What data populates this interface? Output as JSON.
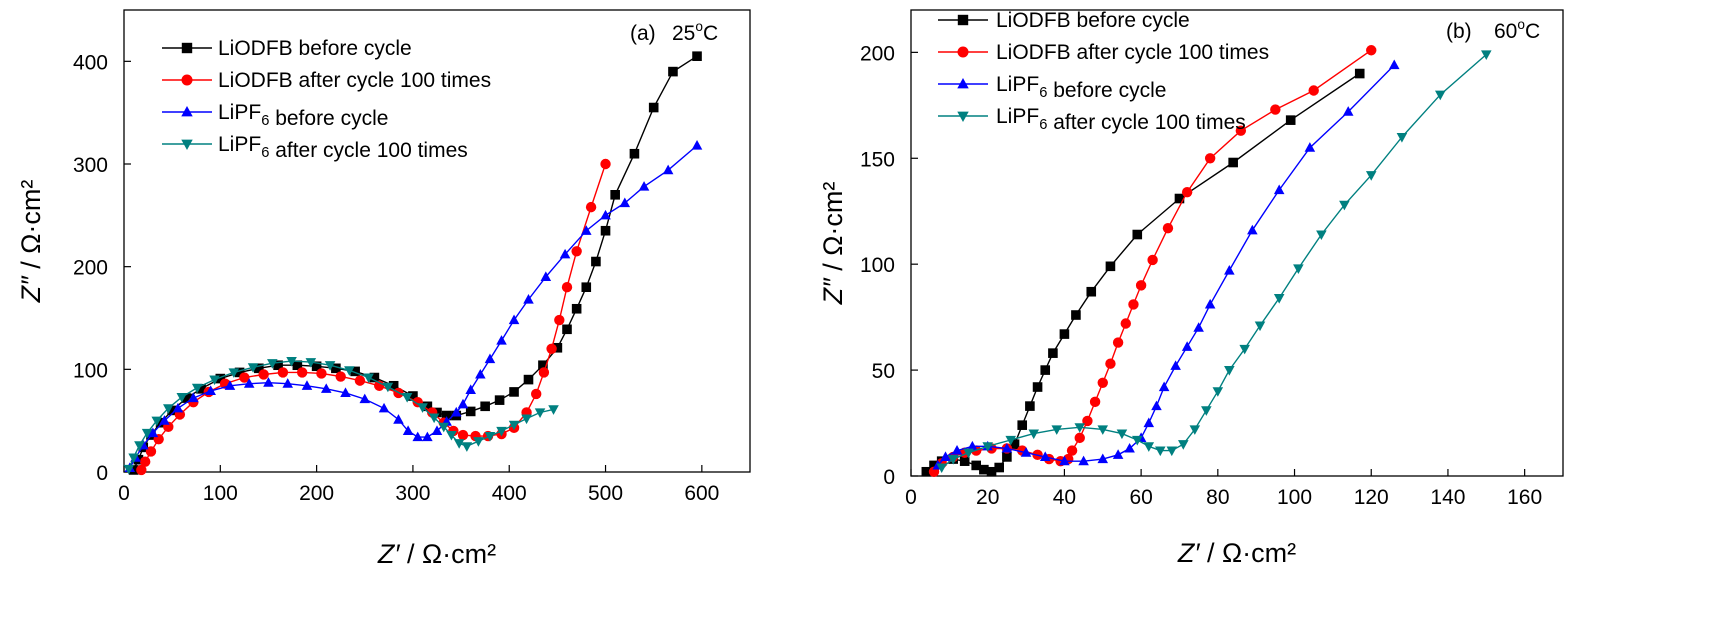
{
  "chart_data": [
    {
      "type": "line",
      "panel": "(a)",
      "temperature": "25°C",
      "xlabel": "Z′ / Ω·cm²",
      "ylabel": "Z″ / Ω·cm²",
      "xlim": [
        0,
        650
      ],
      "ylim": [
        0,
        450
      ],
      "xticks": [
        0,
        100,
        200,
        300,
        400,
        500,
        600
      ],
      "yticks": [
        0,
        100,
        200,
        300,
        400
      ],
      "legend": "top-left",
      "grid": false,
      "series": [
        {
          "name": "LiODFB before cycle",
          "color": "#000000",
          "marker": "square",
          "points": [
            [
              10,
              2
            ],
            [
              15,
              12
            ],
            [
              20,
              24
            ],
            [
              28,
              36
            ],
            [
              38,
              48
            ],
            [
              50,
              60
            ],
            [
              65,
              72
            ],
            [
              80,
              81
            ],
            [
              100,
              91
            ],
            [
              120,
              97
            ],
            [
              140,
              101
            ],
            [
              160,
              104
            ],
            [
              180,
              104
            ],
            [
              200,
              103
            ],
            [
              220,
              101
            ],
            [
              240,
              98
            ],
            [
              260,
              92
            ],
            [
              280,
              84
            ],
            [
              300,
              74
            ],
            [
              315,
              64
            ],
            [
              325,
              58
            ],
            [
              335,
              55
            ],
            [
              345,
              55
            ],
            [
              360,
              59
            ],
            [
              375,
              64
            ],
            [
              390,
              70
            ],
            [
              405,
              78
            ],
            [
              420,
              90
            ],
            [
              435,
              104
            ],
            [
              450,
              121
            ],
            [
              460,
              139
            ],
            [
              470,
              159
            ],
            [
              480,
              180
            ],
            [
              490,
              205
            ],
            [
              500,
              235
            ],
            [
              510,
              270
            ],
            [
              530,
              310
            ],
            [
              550,
              355
            ],
            [
              570,
              390
            ],
            [
              595,
              405
            ]
          ]
        },
        {
          "name": "LiODFB after cycle 100 times",
          "color": "#ff0000",
          "marker": "circle",
          "points": [
            [
              18,
              2
            ],
            [
              22,
              10
            ],
            [
              28,
              20
            ],
            [
              36,
              32
            ],
            [
              46,
              44
            ],
            [
              58,
              56
            ],
            [
              72,
              68
            ],
            [
              88,
              78
            ],
            [
              105,
              86
            ],
            [
              125,
              92
            ],
            [
              145,
              95
            ],
            [
              165,
              97
            ],
            [
              185,
              97
            ],
            [
              205,
              96
            ],
            [
              225,
              93
            ],
            [
              245,
              89
            ],
            [
              265,
              84
            ],
            [
              285,
              77
            ],
            [
              305,
              68
            ],
            [
              320,
              58
            ],
            [
              332,
              48
            ],
            [
              342,
              40
            ],
            [
              352,
              36
            ],
            [
              365,
              35
            ],
            [
              378,
              35
            ],
            [
              392,
              37
            ],
            [
              405,
              43
            ],
            [
              418,
              58
            ],
            [
              428,
              76
            ],
            [
              436,
              97
            ],
            [
              444,
              120
            ],
            [
              452,
              148
            ],
            [
              460,
              180
            ],
            [
              470,
              215
            ],
            [
              485,
              258
            ],
            [
              500,
              300
            ]
          ]
        },
        {
          "name": "LiPF₆ before cycle",
          "color": "#0000ff",
          "marker": "triangle-up",
          "points": [
            [
              6,
              4
            ],
            [
              12,
              14
            ],
            [
              20,
              26
            ],
            [
              30,
              38
            ],
            [
              42,
              50
            ],
            [
              56,
              62
            ],
            [
              72,
              72
            ],
            [
              90,
              79
            ],
            [
              110,
              84
            ],
            [
              130,
              86
            ],
            [
              150,
              87
            ],
            [
              170,
              86
            ],
            [
              190,
              84
            ],
            [
              210,
              81
            ],
            [
              230,
              77
            ],
            [
              250,
              71
            ],
            [
              270,
              62
            ],
            [
              285,
              51
            ],
            [
              295,
              40
            ],
            [
              305,
              34
            ],
            [
              315,
              34
            ],
            [
              325,
              40
            ],
            [
              335,
              49
            ],
            [
              345,
              58
            ],
            [
              352,
              66
            ],
            [
              360,
              80
            ],
            [
              370,
              95
            ],
            [
              380,
              110
            ],
            [
              392,
              128
            ],
            [
              405,
              148
            ],
            [
              420,
              168
            ],
            [
              438,
              190
            ],
            [
              458,
              212
            ],
            [
              480,
              235
            ],
            [
              500,
              250
            ],
            [
              520,
              262
            ],
            [
              540,
              278
            ],
            [
              565,
              294
            ],
            [
              595,
              318
            ]
          ]
        },
        {
          "name": "LiPF₆ after cycle 100 times",
          "color": "#008080",
          "marker": "triangle-down",
          "points": [
            [
              5,
              3
            ],
            [
              10,
              14
            ],
            [
              16,
              26
            ],
            [
              24,
              38
            ],
            [
              34,
              50
            ],
            [
              46,
              62
            ],
            [
              60,
              73
            ],
            [
              76,
              82
            ],
            [
              94,
              90
            ],
            [
              114,
              97
            ],
            [
              134,
              102
            ],
            [
              154,
              106
            ],
            [
              174,
              108
            ],
            [
              194,
              107
            ],
            [
              214,
              104
            ],
            [
              234,
              99
            ],
            [
              254,
              92
            ],
            [
              274,
              83
            ],
            [
              294,
              73
            ],
            [
              310,
              63
            ],
            [
              322,
              53
            ],
            [
              332,
              44
            ],
            [
              340,
              36
            ],
            [
              348,
              28
            ],
            [
              356,
              25
            ],
            [
              368,
              30
            ],
            [
              380,
              35
            ],
            [
              392,
              40
            ],
            [
              405,
              46
            ],
            [
              418,
              52
            ],
            [
              432,
              58
            ],
            [
              446,
              61
            ]
          ]
        }
      ]
    },
    {
      "type": "line",
      "panel": "(b)",
      "temperature": "60°C",
      "xlabel": "Z′ / Ω·cm²",
      "ylabel": "Z″ / Ω·cm²",
      "xlim": [
        0,
        170
      ],
      "ylim": [
        0,
        220
      ],
      "xticks": [
        0,
        20,
        40,
        60,
        80,
        100,
        120,
        140,
        160
      ],
      "yticks": [
        0,
        50,
        100,
        150,
        200
      ],
      "legend": "top-left",
      "grid": false,
      "series": [
        {
          "name": "LiODFB before cycle",
          "color": "#000000",
          "marker": "square",
          "points": [
            [
              4,
              2
            ],
            [
              6,
              5
            ],
            [
              8,
              7
            ],
            [
              11,
              8
            ],
            [
              14,
              7
            ],
            [
              17,
              5
            ],
            [
              19,
              3
            ],
            [
              21,
              2
            ],
            [
              23,
              4
            ],
            [
              25,
              9
            ],
            [
              27,
              15
            ],
            [
              29,
              24
            ],
            [
              31,
              33
            ],
            [
              33,
              42
            ],
            [
              35,
              50
            ],
            [
              37,
              58
            ],
            [
              40,
              67
            ],
            [
              43,
              76
            ],
            [
              47,
              87
            ],
            [
              52,
              99
            ],
            [
              59,
              114
            ],
            [
              70,
              131
            ],
            [
              84,
              148
            ],
            [
              99,
              168
            ],
            [
              117,
              190
            ]
          ]
        },
        {
          "name": "LiODFB after cycle 100 times",
          "color": "#ff0000",
          "marker": "circle",
          "points": [
            [
              6,
              2
            ],
            [
              8,
              6
            ],
            [
              11,
              9
            ],
            [
              14,
              11
            ],
            [
              17,
              12
            ],
            [
              21,
              13
            ],
            [
              25,
              13
            ],
            [
              29,
              12
            ],
            [
              33,
              10
            ],
            [
              36,
              8
            ],
            [
              39,
              7
            ],
            [
              41,
              8
            ],
            [
              42,
              12
            ],
            [
              44,
              18
            ],
            [
              46,
              26
            ],
            [
              48,
              35
            ],
            [
              50,
              44
            ],
            [
              52,
              53
            ],
            [
              54,
              63
            ],
            [
              56,
              72
            ],
            [
              58,
              81
            ],
            [
              60,
              90
            ],
            [
              63,
              102
            ],
            [
              67,
              117
            ],
            [
              72,
              134
            ],
            [
              78,
              150
            ],
            [
              86,
              163
            ],
            [
              95,
              173
            ],
            [
              105,
              182
            ],
            [
              120,
              201
            ]
          ]
        },
        {
          "name": "LiPF₆ before cycle",
          "color": "#0000ff",
          "marker": "triangle-up",
          "points": [
            [
              7,
              5
            ],
            [
              9,
              9
            ],
            [
              12,
              12
            ],
            [
              16,
              14
            ],
            [
              20,
              14
            ],
            [
              25,
              13
            ],
            [
              30,
              11
            ],
            [
              35,
              9
            ],
            [
              40,
              7
            ],
            [
              45,
              7
            ],
            [
              50,
              8
            ],
            [
              54,
              10
            ],
            [
              57,
              13
            ],
            [
              60,
              18
            ],
            [
              62,
              25
            ],
            [
              64,
              33
            ],
            [
              66,
              42
            ],
            [
              69,
              52
            ],
            [
              72,
              61
            ],
            [
              75,
              70
            ],
            [
              78,
              81
            ],
            [
              83,
              97
            ],
            [
              89,
              116
            ],
            [
              96,
              135
            ],
            [
              104,
              155
            ],
            [
              114,
              172
            ],
            [
              126,
              194
            ]
          ]
        },
        {
          "name": "LiPF₆ after cycle 100 times",
          "color": "#008080",
          "marker": "triangle-down",
          "points": [
            [
              8,
              4
            ],
            [
              11,
              8
            ],
            [
              15,
              11
            ],
            [
              20,
              14
            ],
            [
              26,
              17
            ],
            [
              32,
              20
            ],
            [
              38,
              22
            ],
            [
              44,
              23
            ],
            [
              50,
              22
            ],
            [
              55,
              20
            ],
            [
              59,
              17
            ],
            [
              62,
              14
            ],
            [
              65,
              12
            ],
            [
              68,
              12
            ],
            [
              71,
              15
            ],
            [
              74,
              22
            ],
            [
              77,
              31
            ],
            [
              80,
              40
            ],
            [
              83,
              50
            ],
            [
              87,
              60
            ],
            [
              91,
              71
            ],
            [
              96,
              84
            ],
            [
              101,
              98
            ],
            [
              107,
              114
            ],
            [
              113,
              128
            ],
            [
              120,
              142
            ],
            [
              128,
              160
            ],
            [
              138,
              180
            ],
            [
              150,
              199
            ]
          ]
        }
      ]
    }
  ]
}
